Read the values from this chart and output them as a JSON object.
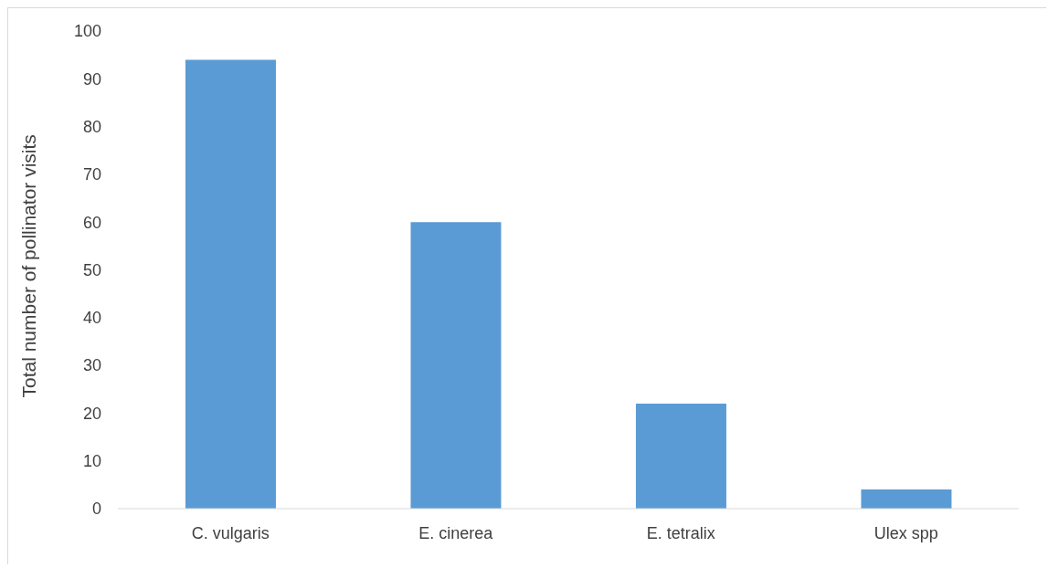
{
  "chart_data": {
    "type": "bar",
    "ylabel": "Total number of pollinator visits",
    "categories": [
      "C. vulgaris",
      "E. cinerea",
      "E. tetralix",
      "Ulex spp"
    ],
    "values": [
      94,
      60,
      22,
      4
    ],
    "color": "#5b9bd5",
    "ylim": [
      0,
      100
    ],
    "yticks": [
      0,
      10,
      20,
      30,
      40,
      50,
      60,
      70,
      80,
      90,
      100
    ],
    "grid": false,
    "legend": false
  }
}
